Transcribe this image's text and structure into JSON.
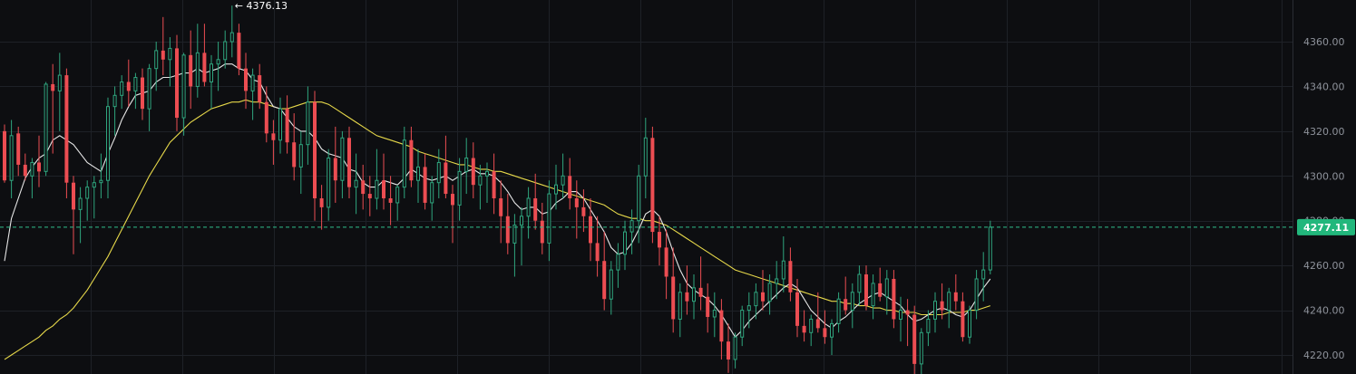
{
  "chart_data": {
    "type": "candlestick",
    "y_ticks": [
      "4220.00",
      "4240.00",
      "4260.00",
      "4280.00",
      "4300.00",
      "4320.00",
      "4340.00",
      "4360.00"
    ],
    "y_range": [
      4212,
      4377
    ],
    "last_price_label": "4277.11",
    "last_price": 4277.11,
    "high_marker_label": "← 4376.13",
    "high_marker_value": 4376.13,
    "grid": true,
    "colors": {
      "up": "#2fa57e",
      "down": "#ec4d52",
      "ma_fast": "#e6e6e6",
      "ma_slow": "#e6d84a",
      "price_line": "#2fbf8c",
      "price_tag_bg": "#22b77c",
      "grid": "#1e2127",
      "axis_text": "#8e929b"
    },
    "candles": [
      [
        4320,
        4323,
        4297,
        4298
      ],
      [
        4298,
        4325,
        4290,
        4318
      ],
      [
        4319,
        4322,
        4300,
        4305
      ],
      [
        4305,
        4310,
        4298,
        4300
      ],
      [
        4300,
        4308,
        4290,
        4306
      ],
      [
        4306,
        4318,
        4295,
        4302
      ],
      [
        4302,
        4342,
        4300,
        4341
      ],
      [
        4341,
        4350,
        4310,
        4338
      ],
      [
        4338,
        4355,
        4320,
        4345
      ],
      [
        4345,
        4348,
        4290,
        4297
      ],
      [
        4297,
        4300,
        4265,
        4285
      ],
      [
        4285,
        4295,
        4270,
        4290
      ],
      [
        4290,
        4298,
        4280,
        4295
      ],
      [
        4295,
        4300,
        4281,
        4297
      ],
      [
        4297,
        4310,
        4290,
        4298
      ],
      [
        4298,
        4335,
        4290,
        4331
      ],
      [
        4331,
        4340,
        4318,
        4336
      ],
      [
        4336,
        4345,
        4330,
        4342
      ],
      [
        4342,
        4352,
        4331,
        4338
      ],
      [
        4338,
        4346,
        4330,
        4344
      ],
      [
        4344,
        4348,
        4325,
        4330
      ],
      [
        4330,
        4350,
        4320,
        4348
      ],
      [
        4348,
        4360,
        4338,
        4356
      ],
      [
        4356,
        4371,
        4345,
        4352
      ],
      [
        4352,
        4362,
        4340,
        4357
      ],
      [
        4357,
        4363,
        4320,
        4326
      ],
      [
        4326,
        4355,
        4318,
        4354
      ],
      [
        4354,
        4365,
        4330,
        4340
      ],
      [
        4340,
        4368,
        4335,
        4355
      ],
      [
        4355,
        4368,
        4340,
        4342
      ],
      [
        4342,
        4354,
        4330,
        4350
      ],
      [
        4350,
        4360,
        4338,
        4352
      ],
      [
        4352,
        4365,
        4348,
        4360
      ],
      [
        4360,
        4376.13,
        4353,
        4364
      ],
      [
        4364,
        4368,
        4345,
        4348
      ],
      [
        4348,
        4355,
        4330,
        4338
      ],
      [
        4338,
        4348,
        4325,
        4345
      ],
      [
        4345,
        4350,
        4330,
        4333
      ],
      [
        4333,
        4340,
        4315,
        4319
      ],
      [
        4319,
        4325,
        4305,
        4316
      ],
      [
        4316,
        4335,
        4310,
        4330
      ],
      [
        4330,
        4336,
        4310,
        4315
      ],
      [
        4315,
        4328,
        4298,
        4304
      ],
      [
        4304,
        4320,
        4292,
        4314
      ],
      [
        4314,
        4340,
        4305,
        4333
      ],
      [
        4333,
        4338,
        4280,
        4290
      ],
      [
        4290,
        4296,
        4276,
        4286
      ],
      [
        4286,
        4312,
        4280,
        4308
      ],
      [
        4308,
        4322,
        4288,
        4298
      ],
      [
        4298,
        4320,
        4290,
        4317
      ],
      [
        4317,
        4322,
        4290,
        4295
      ],
      [
        4295,
        4310,
        4283,
        4298
      ],
      [
        4298,
        4305,
        4285,
        4292
      ],
      [
        4292,
        4300,
        4282,
        4290
      ],
      [
        4290,
        4312,
        4285,
        4298
      ],
      [
        4298,
        4310,
        4285,
        4290
      ],
      [
        4290,
        4300,
        4278,
        4288
      ],
      [
        4288,
        4296,
        4280,
        4295
      ],
      [
        4295,
        4322,
        4290,
        4316
      ],
      [
        4316,
        4322,
        4295,
        4298
      ],
      [
        4298,
        4312,
        4288,
        4304
      ],
      [
        4304,
        4310,
        4285,
        4288
      ],
      [
        4288,
        4300,
        4280,
        4297
      ],
      [
        4297,
        4312,
        4290,
        4306
      ],
      [
        4306,
        4318,
        4290,
        4292
      ],
      [
        4292,
        4296,
        4270,
        4287
      ],
      [
        4287,
        4308,
        4280,
        4302
      ],
      [
        4302,
        4317,
        4292,
        4308
      ],
      [
        4308,
        4315,
        4290,
        4296
      ],
      [
        4296,
        4305,
        4285,
        4300
      ],
      [
        4300,
        4306,
        4288,
        4302
      ],
      [
        4302,
        4310,
        4283,
        4290
      ],
      [
        4290,
        4298,
        4270,
        4282
      ],
      [
        4282,
        4292,
        4265,
        4270
      ],
      [
        4270,
        4283,
        4255,
        4278
      ],
      [
        4278,
        4286,
        4260,
        4282
      ],
      [
        4282,
        4295,
        4272,
        4290
      ],
      [
        4290,
        4301,
        4276,
        4280
      ],
      [
        4280,
        4288,
        4265,
        4270
      ],
      [
        4270,
        4298,
        4262,
        4292
      ],
      [
        4292,
        4305,
        4285,
        4296
      ],
      [
        4296,
        4310,
        4290,
        4300
      ],
      [
        4300,
        4308,
        4285,
        4290
      ],
      [
        4290,
        4298,
        4272,
        4286
      ],
      [
        4286,
        4294,
        4275,
        4282
      ],
      [
        4282,
        4290,
        4262,
        4270
      ],
      [
        4270,
        4282,
        4255,
        4262
      ],
      [
        4262,
        4275,
        4240,
        4245
      ],
      [
        4245,
        4262,
        4238,
        4258
      ],
      [
        4258,
        4270,
        4250,
        4265
      ],
      [
        4265,
        4280,
        4258,
        4275
      ],
      [
        4275,
        4285,
        4265,
        4280
      ],
      [
        4280,
        4305,
        4270,
        4300
      ],
      [
        4300,
        4326,
        4290,
        4317
      ],
      [
        4317,
        4322,
        4270,
        4275
      ],
      [
        4275,
        4282,
        4260,
        4268
      ],
      [
        4268,
        4276,
        4245,
        4255
      ],
      [
        4255,
        4268,
        4230,
        4236
      ],
      [
        4236,
        4252,
        4228,
        4248
      ],
      [
        4248,
        4260,
        4238,
        4244
      ],
      [
        4244,
        4256,
        4236,
        4250
      ],
      [
        4250,
        4264,
        4240,
        4246
      ],
      [
        4246,
        4252,
        4230,
        4237
      ],
      [
        4237,
        4248,
        4228,
        4240
      ],
      [
        4240,
        4245,
        4218,
        4226
      ],
      [
        4226,
        4234,
        4212,
        4218
      ],
      [
        4218,
        4230,
        4214,
        4228
      ],
      [
        4228,
        4242,
        4224,
        4240
      ],
      [
        4240,
        4248,
        4232,
        4242
      ],
      [
        4242,
        4252,
        4236,
        4248
      ],
      [
        4248,
        4258,
        4240,
        4244
      ],
      [
        4244,
        4256,
        4238,
        4252
      ],
      [
        4252,
        4262,
        4245,
        4254
      ],
      [
        4254,
        4273,
        4248,
        4262
      ],
      [
        4262,
        4268,
        4244,
        4248
      ],
      [
        4248,
        4254,
        4228,
        4233
      ],
      [
        4233,
        4240,
        4226,
        4230
      ],
      [
        4230,
        4238,
        4224,
        4236
      ],
      [
        4236,
        4248,
        4230,
        4232
      ],
      [
        4232,
        4240,
        4225,
        4228
      ],
      [
        4228,
        4236,
        4220,
        4234
      ],
      [
        4234,
        4248,
        4230,
        4245
      ],
      [
        4245,
        4255,
        4238,
        4240
      ],
      [
        4240,
        4252,
        4232,
        4248
      ],
      [
        4248,
        4260,
        4242,
        4256
      ],
      [
        4256,
        4260,
        4240,
        4242
      ],
      [
        4242,
        4256,
        4236,
        4252
      ],
      [
        4252,
        4259,
        4244,
        4246
      ],
      [
        4246,
        4258,
        4238,
        4254
      ],
      [
        4254,
        4258,
        4232,
        4236
      ],
      [
        4236,
        4246,
        4226,
        4240
      ],
      [
        4240,
        4245,
        4224,
        4238
      ],
      [
        4238,
        4242,
        4208,
        4216
      ],
      [
        4216,
        4232,
        4210,
        4230
      ],
      [
        4230,
        4240,
        4224,
        4236
      ],
      [
        4236,
        4248,
        4230,
        4244
      ],
      [
        4244,
        4252,
        4236,
        4240
      ],
      [
        4240,
        4250,
        4232,
        4248
      ],
      [
        4248,
        4256,
        4240,
        4244
      ],
      [
        4244,
        4248,
        4226,
        4228
      ],
      [
        4228,
        4242,
        4225,
        4240
      ],
      [
        4240,
        4258,
        4236,
        4254
      ],
      [
        4254,
        4266,
        4244,
        4258
      ],
      [
        4258,
        4280,
        4256,
        4277.11
      ]
    ],
    "ma_fast": [
      4262,
      4281,
      4290,
      4299,
      4304,
      4308,
      4310,
      4316,
      4318,
      4316,
      4314,
      4310,
      4306,
      4304,
      4302,
      4310,
      4317,
      4325,
      4331,
      4336,
      4337,
      4338,
      4342,
      4344,
      4344,
      4345,
      4346,
      4346,
      4348,
      4346,
      4347,
      4348,
      4350,
      4350,
      4348,
      4347,
      4343,
      4342,
      4336,
      4331,
      4330,
      4326,
      4322,
      4320,
      4320,
      4317,
      4312,
      4310,
      4309,
      4308,
      4303,
      4302,
      4297,
      4295,
      4295,
      4298,
      4297,
      4296,
      4299,
      4303,
      4301,
      4299,
      4298,
      4299,
      4300,
      4298,
      4300,
      4302,
      4303,
      4301,
      4301,
      4300,
      4297,
      4293,
      4288,
      4285,
      4286,
      4286,
      4283,
      4284,
      4288,
      4290,
      4293,
      4293,
      4290,
      4285,
      4280,
      4275,
      4268,
      4265,
      4266,
      4270,
      4276,
      4283,
      4285,
      4282,
      4275,
      4266,
      4258,
      4252,
      4249,
      4247,
      4245,
      4242,
      4238,
      4233,
      4228,
      4231,
      4235,
      4238,
      4241,
      4244,
      4247,
      4250,
      4252,
      4250,
      4245,
      4240,
      4237,
      4234,
      4232,
      4235,
      4237,
      4240,
      4243,
      4245,
      4247,
      4248,
      4246,
      4244,
      4242,
      4238,
      4235,
      4236,
      4238,
      4240,
      4241,
      4240,
      4238,
      4237,
      4240,
      4245,
      4250,
      4254
    ],
    "ma_slow": [
      4218,
      4220,
      4222,
      4224,
      4226,
      4228,
      4231,
      4233,
      4236,
      4238,
      4241,
      4245,
      4249,
      4254,
      4259,
      4264,
      4270,
      4276,
      4282,
      4288,
      4294,
      4300,
      4305,
      4310,
      4315,
      4318,
      4321,
      4324,
      4326,
      4328,
      4330,
      4331,
      4332,
      4333,
      4333,
      4334,
      4333,
      4333,
      4332,
      4331,
      4330,
      4330,
      4331,
      4332,
      4333,
      4333,
      4333,
      4332,
      4330,
      4328,
      4326,
      4324,
      4322,
      4320,
      4318,
      4317,
      4316,
      4315,
      4314,
      4313,
      4311,
      4310,
      4309,
      4308,
      4307,
      4306,
      4305,
      4305,
      4304,
      4303,
      4303,
      4302,
      4302,
      4301,
      4300,
      4299,
      4298,
      4297,
      4296,
      4295,
      4294,
      4293,
      4292,
      4291,
      4290,
      4289,
      4288,
      4287,
      4285,
      4283,
      4282,
      4281,
      4281,
      4280,
      4280,
      4279,
      4278,
      4276,
      4274,
      4272,
      4270,
      4268,
      4266,
      4264,
      4262,
      4260,
      4258,
      4257,
      4256,
      4255,
      4254,
      4253,
      4252,
      4251,
      4250,
      4249,
      4248,
      4247,
      4246,
      4245,
      4244,
      4244,
      4243,
      4243,
      4242,
      4242,
      4241,
      4241,
      4240,
      4240,
      4239,
      4239,
      4239,
      4238,
      4238,
      4238,
      4238,
      4239,
      4239,
      4239,
      4240,
      4240,
      4241,
      4242
    ]
  }
}
